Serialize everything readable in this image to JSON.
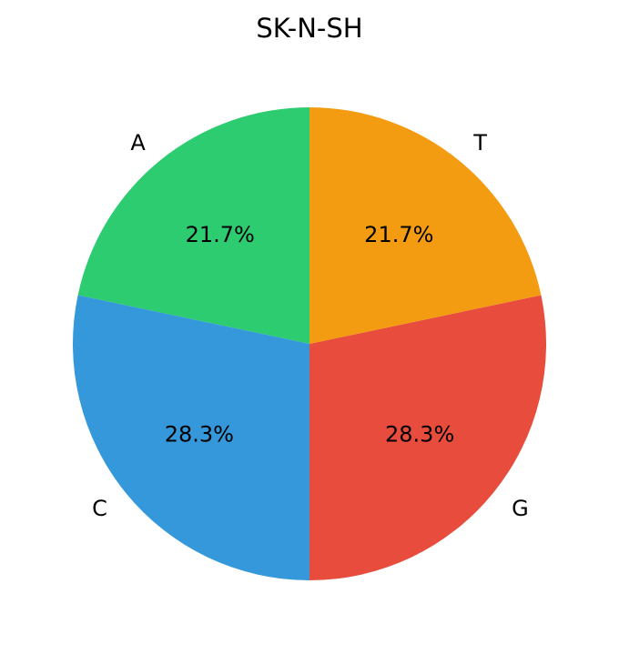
{
  "chart_data": {
    "type": "pie",
    "title": "SK-N-SH",
    "categories": [
      "A",
      "C",
      "G",
      "T"
    ],
    "values": [
      21.7,
      28.3,
      28.3,
      21.7
    ],
    "value_labels": [
      "21.7%",
      "28.3%",
      "28.3%",
      "21.7%"
    ],
    "colors": [
      "#2ecc71",
      "#3498db",
      "#e74c3c",
      "#f39c12"
    ],
    "start_angle": 90,
    "direction": "counterclockwise",
    "legend": null
  }
}
